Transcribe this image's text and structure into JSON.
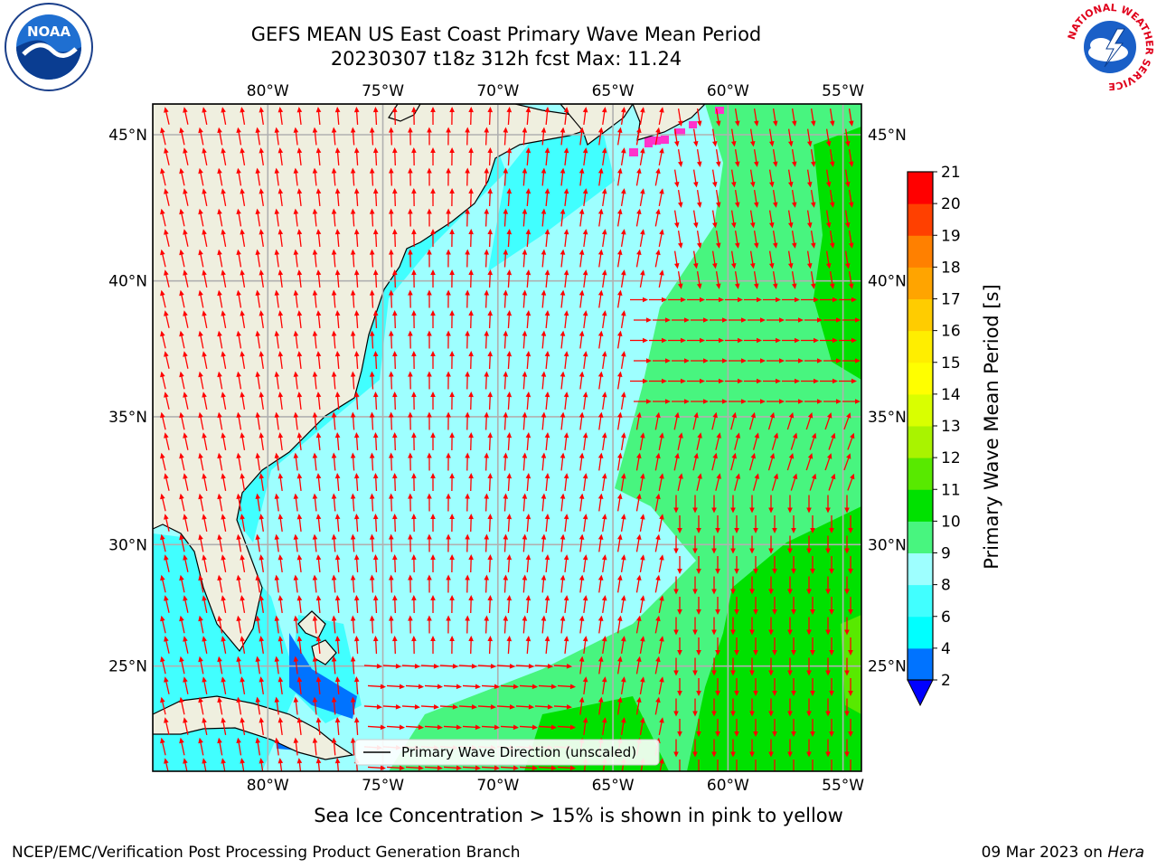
{
  "header": {
    "title_line1": "GEFS MEAN US East Coast Primary Wave Mean Period",
    "title_line2": "20230307 t18z 312h fcst   Max: 11.24"
  },
  "logos": {
    "left": {
      "icon": "noaa-logo",
      "text": "NOAA"
    },
    "right": {
      "icon": "nws-logo",
      "ring_text": "NATIONAL WEATHER SERVICE"
    }
  },
  "map": {
    "projection": "mercator",
    "extent": {
      "lon_min": -85,
      "lon_max": -54.2,
      "lat_min": 20.5,
      "lat_max": 46
    },
    "lon_ticks": [
      "80°W",
      "75°W",
      "70°W",
      "65°W",
      "60°W",
      "55°W"
    ],
    "lat_ticks": [
      "45°N",
      "40°N",
      "35°N",
      "30°N",
      "25°N"
    ],
    "colors": {
      "land": "#efefdf",
      "coast": "#000000",
      "grid": "#b0b0b0",
      "arrows": "#ff0000"
    },
    "legend_label": "Primary Wave Direction (unscaled)",
    "legend_placement": "bottom-center"
  },
  "colorbar": {
    "label": "Primary Wave Mean Period [s]",
    "ticks": [
      "2",
      "4",
      "6",
      "8",
      "9",
      "10",
      "11",
      "12",
      "13",
      "14",
      "15",
      "16",
      "17",
      "18",
      "19",
      "20",
      "21"
    ],
    "colors": [
      "#0073ff",
      "#00ffff",
      "#41ffff",
      "#9effff",
      "#48f57f",
      "#00e100",
      "#58e900",
      "#a9f300",
      "#d9ff00",
      "#ffff00",
      "#ffee00",
      "#ffcc00",
      "#ffa400",
      "#ff8000",
      "#ff4000",
      "#ff0000"
    ],
    "under_color": "#0000ff",
    "extend": "min"
  },
  "caption": "Sea Ice Concentration > 15% is shown in pink to yellow",
  "footer": {
    "left": "NCEP/EMC/Verification Post Processing Product Generation Branch",
    "date": "09 Mar 2023 on ",
    "host": "Hera"
  }
}
